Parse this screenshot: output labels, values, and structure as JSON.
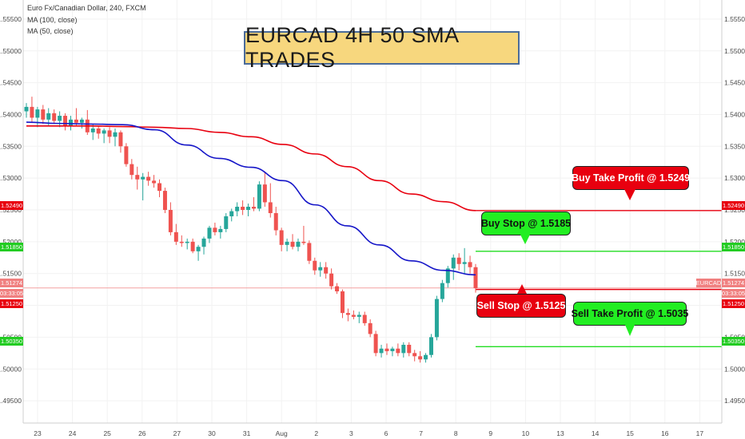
{
  "header": {
    "symbol_line": "Euro Fx/Canadian Dollar, 240, FXCM",
    "ma100_label": "MA (100, close)",
    "ma50_label": "MA (50, close)"
  },
  "title": "EURCAD 4H 50 SMA TRADES",
  "callouts": {
    "buy_tp": "Buy Take Profit @ 1.5249",
    "buy_stop": "Buy Stop @ 1.5185",
    "sell_stop": "Sell Stop @ 1.5125",
    "sell_tp": "Sell Take Profit @ 1.5035"
  },
  "tags": {
    "buy_tp": "1.52490",
    "buy_stop": "1.51850",
    "current": "1.51274",
    "countdown": "03:33:05",
    "sell_stop": "1.51250",
    "sell_tp": "1.50350",
    "symbol": "EURCAD"
  },
  "colors": {
    "up": "#26a69a",
    "down": "#ef5350",
    "ma100": "#e8000f",
    "ma50": "#1515c8",
    "buy_level": "#e8000f",
    "green_level": "#22dd22",
    "current_line": "#f4a0a0"
  },
  "chart_data": {
    "type": "candlestick",
    "instrument": "EURCAD",
    "timeframe": "240",
    "ylim": [
      1.4915,
      1.558
    ],
    "y_ticks": [
      "1.55500",
      "1.55000",
      "1.54500",
      "1.54000",
      "1.53500",
      "1.53000",
      "1.52500",
      "1.52000",
      "1.51500",
      "1.51000",
      "1.50500",
      "1.50000",
      "1.49500"
    ],
    "y_tick_values": [
      1.555,
      1.55,
      1.545,
      1.54,
      1.535,
      1.53,
      1.525,
      1.52,
      1.515,
      1.51,
      1.505,
      1.5,
      1.495
    ],
    "x_ticks": [
      "23",
      "24",
      "25",
      "26",
      "27",
      "30",
      "31",
      "Aug",
      "2",
      "3",
      "6",
      "7",
      "8",
      "9",
      "10",
      "13",
      "14",
      "15",
      "16",
      "17"
    ],
    "levels": {
      "buy_take_profit": 1.5249,
      "buy_stop": 1.5185,
      "current_price": 1.51274,
      "sell_stop": 1.5125,
      "sell_take_profit": 1.5035
    },
    "candles": [
      {
        "o": 1.5405,
        "h": 1.5418,
        "l": 1.5395,
        "c": 1.5412
      },
      {
        "o": 1.5412,
        "h": 1.5428,
        "l": 1.5388,
        "c": 1.5395
      },
      {
        "o": 1.5395,
        "h": 1.5412,
        "l": 1.538,
        "c": 1.5408
      },
      {
        "o": 1.5408,
        "h": 1.5415,
        "l": 1.5385,
        "c": 1.5392
      },
      {
        "o": 1.5392,
        "h": 1.541,
        "l": 1.5382,
        "c": 1.5402
      },
      {
        "o": 1.5402,
        "h": 1.5408,
        "l": 1.5385,
        "c": 1.539
      },
      {
        "o": 1.539,
        "h": 1.5405,
        "l": 1.538,
        "c": 1.5398
      },
      {
        "o": 1.5398,
        "h": 1.5402,
        "l": 1.5375,
        "c": 1.5382
      },
      {
        "o": 1.5382,
        "h": 1.5398,
        "l": 1.5375,
        "c": 1.5392
      },
      {
        "o": 1.5392,
        "h": 1.541,
        "l": 1.5383,
        "c": 1.5387
      },
      {
        "o": 1.5387,
        "h": 1.5395,
        "l": 1.5378,
        "c": 1.5392
      },
      {
        "o": 1.5392,
        "h": 1.5407,
        "l": 1.5368,
        "c": 1.5372
      },
      {
        "o": 1.5372,
        "h": 1.5385,
        "l": 1.536,
        "c": 1.5378
      },
      {
        "o": 1.5378,
        "h": 1.5382,
        "l": 1.5362,
        "c": 1.537
      },
      {
        "o": 1.537,
        "h": 1.5378,
        "l": 1.5355,
        "c": 1.5375
      },
      {
        "o": 1.5375,
        "h": 1.538,
        "l": 1.5355,
        "c": 1.5365
      },
      {
        "o": 1.5365,
        "h": 1.5378,
        "l": 1.535,
        "c": 1.5372
      },
      {
        "o": 1.5372,
        "h": 1.5375,
        "l": 1.534,
        "c": 1.535
      },
      {
        "o": 1.535,
        "h": 1.5355,
        "l": 1.5318,
        "c": 1.5322
      },
      {
        "o": 1.5322,
        "h": 1.533,
        "l": 1.5298,
        "c": 1.5305
      },
      {
        "o": 1.5305,
        "h": 1.5318,
        "l": 1.5282,
        "c": 1.5298
      },
      {
        "o": 1.5298,
        "h": 1.5308,
        "l": 1.5265,
        "c": 1.5302
      },
      {
        "o": 1.5302,
        "h": 1.531,
        "l": 1.5288,
        "c": 1.5296
      },
      {
        "o": 1.5296,
        "h": 1.5305,
        "l": 1.5285,
        "c": 1.5292
      },
      {
        "o": 1.5292,
        "h": 1.5298,
        "l": 1.527,
        "c": 1.528
      },
      {
        "o": 1.528,
        "h": 1.5285,
        "l": 1.5245,
        "c": 1.525
      },
      {
        "o": 1.525,
        "h": 1.5262,
        "l": 1.521,
        "c": 1.5215
      },
      {
        "o": 1.5215,
        "h": 1.5228,
        "l": 1.5195,
        "c": 1.52
      },
      {
        "o": 1.52,
        "h": 1.521,
        "l": 1.5192,
        "c": 1.5198
      },
      {
        "o": 1.5198,
        "h": 1.5205,
        "l": 1.5188,
        "c": 1.52
      },
      {
        "o": 1.52,
        "h": 1.5205,
        "l": 1.5182,
        "c": 1.5185
      },
      {
        "o": 1.5185,
        "h": 1.5195,
        "l": 1.517,
        "c": 1.5192
      },
      {
        "o": 1.5192,
        "h": 1.5208,
        "l": 1.518,
        "c": 1.5205
      },
      {
        "o": 1.5205,
        "h": 1.5225,
        "l": 1.5198,
        "c": 1.5222
      },
      {
        "o": 1.5222,
        "h": 1.523,
        "l": 1.521,
        "c": 1.5215
      },
      {
        "o": 1.5215,
        "h": 1.5225,
        "l": 1.5205,
        "c": 1.522
      },
      {
        "o": 1.522,
        "h": 1.5245,
        "l": 1.5215,
        "c": 1.524
      },
      {
        "o": 1.524,
        "h": 1.5252,
        "l": 1.5232,
        "c": 1.5248
      },
      {
        "o": 1.5248,
        "h": 1.5262,
        "l": 1.524,
        "c": 1.5255
      },
      {
        "o": 1.5255,
        "h": 1.5265,
        "l": 1.5242,
        "c": 1.525
      },
      {
        "o": 1.525,
        "h": 1.526,
        "l": 1.524,
        "c": 1.5255
      },
      {
        "o": 1.5255,
        "h": 1.527,
        "l": 1.5248,
        "c": 1.5252
      },
      {
        "o": 1.5252,
        "h": 1.5295,
        "l": 1.5248,
        "c": 1.529
      },
      {
        "o": 1.529,
        "h": 1.531,
        "l": 1.5255,
        "c": 1.5262
      },
      {
        "o": 1.5262,
        "h": 1.5292,
        "l": 1.5238,
        "c": 1.5245
      },
      {
        "o": 1.5245,
        "h": 1.5255,
        "l": 1.521,
        "c": 1.5218
      },
      {
        "o": 1.5218,
        "h": 1.5222,
        "l": 1.5185,
        "c": 1.5195
      },
      {
        "o": 1.5195,
        "h": 1.5205,
        "l": 1.5185,
        "c": 1.52
      },
      {
        "o": 1.52,
        "h": 1.5212,
        "l": 1.5188,
        "c": 1.5192
      },
      {
        "o": 1.5192,
        "h": 1.5205,
        "l": 1.5185,
        "c": 1.52
      },
      {
        "o": 1.52,
        "h": 1.5225,
        "l": 1.5195,
        "c": 1.5198
      },
      {
        "o": 1.5198,
        "h": 1.5202,
        "l": 1.5165,
        "c": 1.517
      },
      {
        "o": 1.517,
        "h": 1.5175,
        "l": 1.5148,
        "c": 1.5155
      },
      {
        "o": 1.5155,
        "h": 1.5168,
        "l": 1.5145,
        "c": 1.516
      },
      {
        "o": 1.516,
        "h": 1.5168,
        "l": 1.5142,
        "c": 1.515
      },
      {
        "o": 1.515,
        "h": 1.5158,
        "l": 1.5125,
        "c": 1.513
      },
      {
        "o": 1.513,
        "h": 1.5135,
        "l": 1.5118,
        "c": 1.5122
      },
      {
        "o": 1.5122,
        "h": 1.5125,
        "l": 1.508,
        "c": 1.5088
      },
      {
        "o": 1.5088,
        "h": 1.5095,
        "l": 1.5075,
        "c": 1.5085
      },
      {
        "o": 1.5085,
        "h": 1.5092,
        "l": 1.5078,
        "c": 1.5082
      },
      {
        "o": 1.5082,
        "h": 1.509,
        "l": 1.5072,
        "c": 1.5085
      },
      {
        "o": 1.5085,
        "h": 1.509,
        "l": 1.5068,
        "c": 1.5072
      },
      {
        "o": 1.5072,
        "h": 1.5078,
        "l": 1.505,
        "c": 1.5055
      },
      {
        "o": 1.5055,
        "h": 1.506,
        "l": 1.502,
        "c": 1.5025
      },
      {
        "o": 1.5025,
        "h": 1.5038,
        "l": 1.5018,
        "c": 1.5032
      },
      {
        "o": 1.5032,
        "h": 1.504,
        "l": 1.5022,
        "c": 1.5028
      },
      {
        "o": 1.5028,
        "h": 1.5035,
        "l": 1.502,
        "c": 1.5032
      },
      {
        "o": 1.5032,
        "h": 1.504,
        "l": 1.502,
        "c": 1.5025
      },
      {
        "o": 1.5025,
        "h": 1.5042,
        "l": 1.5018,
        "c": 1.5038
      },
      {
        "o": 1.5038,
        "h": 1.5042,
        "l": 1.502,
        "c": 1.5025
      },
      {
        "o": 1.5025,
        "h": 1.503,
        "l": 1.5012,
        "c": 1.502
      },
      {
        "o": 1.502,
        "h": 1.5028,
        "l": 1.501,
        "c": 1.5015
      },
      {
        "o": 1.5015,
        "h": 1.5025,
        "l": 1.501,
        "c": 1.5022
      },
      {
        "o": 1.5022,
        "h": 1.5055,
        "l": 1.5018,
        "c": 1.505
      },
      {
        "o": 1.505,
        "h": 1.5115,
        "l": 1.5045,
        "c": 1.511
      },
      {
        "o": 1.511,
        "h": 1.514,
        "l": 1.5105,
        "c": 1.5135
      },
      {
        "o": 1.5135,
        "h": 1.5162,
        "l": 1.5128,
        "c": 1.5158
      },
      {
        "o": 1.5158,
        "h": 1.518,
        "l": 1.514,
        "c": 1.5175
      },
      {
        "o": 1.5175,
        "h": 1.5182,
        "l": 1.5155,
        "c": 1.5165
      },
      {
        "o": 1.5165,
        "h": 1.519,
        "l": 1.515,
        "c": 1.5168
      },
      {
        "o": 1.5168,
        "h": 1.5178,
        "l": 1.515,
        "c": 1.516
      },
      {
        "o": 1.516,
        "h": 1.5165,
        "l": 1.512,
        "c": 1.5127
      }
    ],
    "ma100": [
      1.5382,
      1.5382,
      1.5382,
      1.5381,
      1.538,
      1.5378,
      1.5372,
      1.5365,
      1.5353,
      1.5338,
      1.5318,
      1.5296,
      1.5275,
      1.5263,
      1.5249
    ],
    "ma50": [
      1.5388,
      1.5386,
      1.5385,
      1.5384,
      1.5376,
      1.5352,
      1.5331,
      1.5317,
      1.5296,
      1.5258,
      1.5225,
      1.5195,
      1.517,
      1.5155,
      1.5148
    ]
  }
}
